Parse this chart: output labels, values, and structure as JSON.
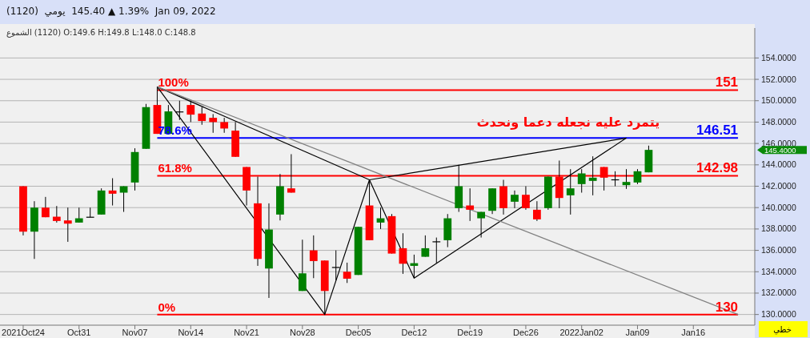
{
  "chart_data": {
    "type": "candlestick",
    "title": "(1120)  يومي  145.40 ▲ 1.39%  Jan 09, 2022",
    "subtitle": "الشموع (1120) O:149.6 H:149.8 L:148.0 C:148.8",
    "categories": [
      "2021Oct24",
      null,
      null,
      null,
      null,
      "Oct31",
      null,
      null,
      null,
      null,
      "Nov07",
      null,
      null,
      null,
      null,
      "Nov14",
      null,
      null,
      null,
      null,
      "Nov21",
      null,
      null,
      null,
      null,
      "Nov28",
      null,
      null,
      null,
      null,
      "Dec05",
      null,
      null,
      null,
      null,
      "Dec12",
      null,
      null,
      null,
      null,
      "Dec19",
      null,
      null,
      null,
      null,
      "Dec26",
      null,
      null,
      null,
      null,
      "2022Jan02",
      null,
      null,
      null,
      null,
      "Jan09",
      null,
      null,
      null,
      null,
      "Jan16",
      null,
      null,
      null,
      null,
      null
    ],
    "ohlc": [
      [
        142.0,
        142.0,
        137.4,
        137.75
      ],
      [
        137.75,
        140.6,
        135.2,
        140.0
      ],
      [
        140.0,
        141.0,
        139.1,
        139.1
      ],
      [
        139.15,
        140.15,
        138.6,
        138.75
      ],
      [
        138.8,
        140.0,
        136.8,
        138.5
      ],
      [
        138.6,
        140.0,
        138.6,
        139.0
      ],
      [
        139.1,
        140.0,
        139.1,
        139.1
      ],
      [
        139.35,
        141.8,
        139.35,
        141.6
      ],
      [
        141.6,
        142.75,
        140.2,
        141.3
      ],
      [
        141.4,
        142.0,
        139.6,
        142.0
      ],
      [
        142.35,
        145.55,
        141.6,
        145.2
      ],
      [
        145.5,
        149.7,
        145.5,
        149.4
      ],
      [
        149.6,
        151.3,
        146.9,
        146.9
      ],
      [
        146.9,
        149.6,
        146.85,
        149.0
      ],
      [
        148.95,
        150.0,
        148.2,
        148.95
      ],
      [
        149.6,
        150.0,
        148.0,
        148.7
      ],
      [
        148.8,
        149.4,
        147.75,
        148.1
      ],
      [
        148.4,
        148.75,
        147.0,
        148.0
      ],
      [
        148.0,
        148.4,
        147.0,
        147.4
      ],
      [
        147.2,
        148.0,
        144.75,
        144.75
      ],
      [
        143.8,
        143.8,
        140.2,
        141.6
      ],
      [
        140.4,
        142.9,
        134.55,
        135.2
      ],
      [
        134.3,
        140.4,
        131.55,
        137.95
      ],
      [
        139.35,
        143.15,
        138.8,
        142.0
      ],
      [
        141.8,
        145.0,
        141.4,
        141.4
      ],
      [
        132.2,
        137.0,
        132.2,
        133.85
      ],
      [
        136.0,
        137.4,
        133.4,
        135.0
      ],
      [
        135.05,
        135.05,
        130.0,
        132.2
      ],
      [
        134.4,
        136.0,
        133.2,
        134.4
      ],
      [
        134.0,
        134.85,
        132.95,
        133.35
      ],
      [
        133.7,
        138.2,
        133.7,
        138.2
      ],
      [
        140.2,
        142.6,
        136.95,
        136.95
      ],
      [
        138.6,
        140.0,
        138.0,
        139.0
      ],
      [
        139.2,
        139.4,
        135.7,
        135.7
      ],
      [
        136.2,
        137.6,
        133.8,
        134.75
      ],
      [
        134.55,
        135.6,
        133.4,
        134.8
      ],
      [
        135.4,
        137.4,
        135.4,
        136.2
      ],
      [
        136.8,
        137.2,
        134.8,
        136.8
      ],
      [
        136.95,
        139.4,
        136.3,
        139.0
      ],
      [
        139.95,
        144.0,
        139.6,
        142.0
      ],
      [
        140.2,
        141.8,
        138.75,
        139.8
      ],
      [
        139.0,
        139.6,
        137.2,
        139.6
      ],
      [
        139.7,
        141.8,
        139.4,
        141.8
      ],
      [
        142.0,
        142.6,
        139.35,
        139.95
      ],
      [
        140.55,
        141.6,
        139.95,
        141.2
      ],
      [
        141.2,
        142.0,
        139.8,
        139.95
      ],
      [
        139.8,
        140.6,
        138.75,
        138.9
      ],
      [
        139.95,
        142.9,
        139.8,
        142.9
      ],
      [
        142.9,
        144.4,
        139.95,
        140.9
      ],
      [
        141.15,
        143.6,
        139.35,
        141.8
      ],
      [
        142.2,
        143.6,
        141.4,
        143.2
      ],
      [
        142.5,
        144.8,
        141.15,
        142.8
      ],
      [
        143.8,
        143.8,
        141.6,
        142.8
      ],
      [
        142.6,
        143.4,
        142.0,
        142.6
      ],
      [
        142.1,
        143.6,
        141.75,
        142.4
      ],
      [
        142.35,
        143.6,
        142.2,
        143.4
      ],
      [
        143.3,
        145.8,
        143.3,
        145.4
      ],
      null,
      null,
      null,
      null,
      null,
      null,
      null,
      null,
      null
    ],
    "colors": [
      "#ff0000",
      "#008000",
      "#ff0000",
      "#ff0000",
      "#ff0000",
      "#008000",
      "#000000",
      "#008000",
      "#ff0000",
      "#008000",
      "#008000",
      "#008000",
      "#ff0000",
      "#008000",
      "#000000",
      "#ff0000",
      "#ff0000",
      "#ff0000",
      "#ff0000",
      "#ff0000",
      "#ff0000",
      "#ff0000",
      "#008000",
      "#008000",
      "#ff0000",
      "#008000",
      "#ff0000",
      "#ff0000",
      "#000000",
      "#ff0000",
      "#008000",
      "#ff0000",
      "#008000",
      "#ff0000",
      "#ff0000",
      "#008000",
      "#008000",
      "#000000",
      "#008000",
      "#008000",
      "#ff0000",
      "#008000",
      "#008000",
      "#ff0000",
      "#008000",
      "#ff0000",
      "#ff0000",
      "#008000",
      "#ff0000",
      "#008000",
      "#008000",
      "#008000",
      "#ff0000",
      "#000000",
      "#008000",
      "#008000",
      "#008000",
      null,
      null,
      null,
      null,
      null,
      null,
      null,
      null,
      null
    ],
    "ylim": [
      129,
      156.8
    ],
    "yticks": [
      {
        "value": 130,
        "label": "130.0000"
      },
      {
        "value": 132,
        "label": "132.0000"
      },
      {
        "value": 134,
        "label": "134.0000"
      },
      {
        "value": 136,
        "label": "136.0000"
      },
      {
        "value": 138,
        "label": "138.0000"
      },
      {
        "value": 140,
        "label": "140.0000"
      },
      {
        "value": 142,
        "label": "142.0000"
      },
      {
        "value": 144,
        "label": "144.0000"
      },
      {
        "value": 146,
        "label": "146.0000"
      },
      {
        "value": 148,
        "label": "148.0000"
      },
      {
        "value": 150,
        "label": "150.0000"
      },
      {
        "value": 152,
        "label": "152.0000"
      },
      {
        "value": 154,
        "label": "154.0000"
      }
    ],
    "grid": "y",
    "series": [
      {
        "type": "line",
        "color": "#000000",
        "values": [
          null,
          null,
          null,
          null,
          null,
          null,
          null,
          null,
          null,
          null,
          null,
          null,
          151.3,
          null,
          null,
          null,
          null,
          null,
          null,
          null,
          null,
          null,
          null,
          null,
          null,
          null,
          null,
          130,
          null,
          null,
          null,
          142.6,
          null,
          null,
          null,
          133.4,
          null,
          null,
          null,
          null,
          null,
          null,
          null,
          null,
          null,
          null,
          null,
          null,
          null,
          null,
          null,
          null,
          null,
          null,
          146.51,
          null,
          null,
          null,
          null,
          null,
          null,
          null,
          null,
          null,
          null,
          null
        ]
      },
      {
        "type": "line",
        "color": "#000000",
        "values": [
          null,
          null,
          null,
          null,
          null,
          null,
          null,
          null,
          null,
          null,
          null,
          null,
          151.3,
          null,
          null,
          null,
          null,
          null,
          null,
          null,
          null,
          null,
          null,
          null,
          null,
          null,
          null,
          null,
          null,
          null,
          null,
          142.6,
          null,
          null,
          null,
          null,
          null,
          null,
          null,
          null,
          null,
          null,
          null,
          null,
          null,
          null,
          null,
          null,
          null,
          null,
          null,
          null,
          null,
          null,
          null,
          null,
          null,
          null,
          null,
          null,
          null,
          null,
          null,
          null,
          null,
          null
        ]
      },
      {
        "type": "line",
        "color": "#000000",
        "values": [
          null,
          null,
          null,
          null,
          null,
          null,
          null,
          null,
          null,
          null,
          null,
          null,
          null,
          null,
          null,
          null,
          null,
          null,
          null,
          null,
          null,
          null,
          null,
          null,
          null,
          null,
          null,
          null,
          null,
          null,
          null,
          142.6,
          null,
          null,
          null,
          null,
          null,
          null,
          null,
          null,
          null,
          null,
          null,
          null,
          null,
          null,
          null,
          null,
          null,
          null,
          null,
          null,
          null,
          null,
          146.51,
          null,
          null,
          null,
          null,
          null,
          null,
          null,
          null,
          null,
          null,
          null
        ]
      },
      {
        "type": "line",
        "color": "#808080",
        "values": [
          null,
          null,
          null,
          null,
          null,
          null,
          null,
          null,
          null,
          null,
          null,
          null,
          151.3,
          null,
          null,
          null,
          null,
          null,
          null,
          null,
          null,
          null,
          null,
          null,
          null,
          null,
          null,
          null,
          null,
          null,
          null,
          null,
          null,
          null,
          null,
          null,
          null,
          null,
          null,
          null,
          null,
          null,
          null,
          null,
          null,
          null,
          null,
          null,
          null,
          null,
          null,
          null,
          null,
          null,
          null,
          null,
          null,
          null,
          null,
          null,
          null,
          null,
          null,
          null,
          130,
          null
        ]
      }
    ],
    "ref_lines": [
      {
        "axis": "y",
        "value": 151,
        "label": "151",
        "color": "#ff0000"
      },
      {
        "axis": "y",
        "value": 146.51,
        "label": "146.51",
        "color": "#0000ff"
      },
      {
        "axis": "y",
        "value": 142.98,
        "label": "142.98",
        "color": "#ff0000"
      },
      {
        "axis": "y",
        "value": 130,
        "label": "130",
        "color": "#ff0000"
      }
    ],
    "annotations": [
      "100%",
      "78.6%",
      "61.8%",
      "0%",
      "يتمرد عليه نجعله دعما ونحدث",
      "145.4000",
      "خطي"
    ]
  }
}
